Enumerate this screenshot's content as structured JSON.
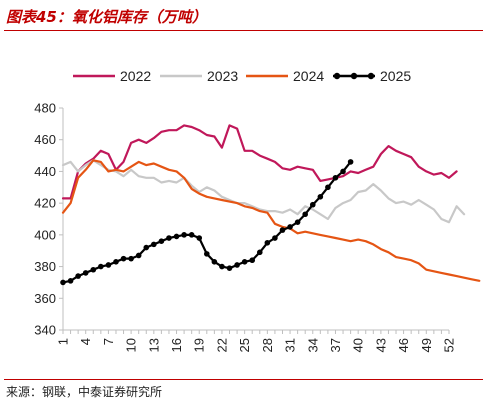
{
  "title": "图表45：氧化铝库存（万吨）",
  "source": "来源：钢联，中泰证券研究所",
  "colors": {
    "accent": "#c00000",
    "axis": "#bfbfbf"
  },
  "chart_data": {
    "type": "line",
    "title": "图表45：氧化铝库存（万吨）",
    "xlabel": "",
    "ylabel": "",
    "xlim": [
      1,
      52
    ],
    "ylim": [
      340,
      480
    ],
    "xticks": [
      1,
      4,
      7,
      10,
      13,
      16,
      19,
      22,
      25,
      28,
      31,
      34,
      37,
      40,
      43,
      46,
      49,
      52
    ],
    "yticks": [
      340,
      360,
      380,
      400,
      420,
      440,
      460,
      480
    ],
    "grid": false,
    "legend": "top",
    "series": [
      {
        "name": "2022",
        "color": "#c0185a",
        "marker": false,
        "values": [
          423,
          423,
          440,
          445,
          448,
          453,
          451,
          441,
          446,
          458,
          460,
          458,
          461,
          465,
          466,
          466,
          469,
          468,
          466,
          463,
          462,
          455,
          469,
          467,
          453,
          453,
          450,
          448,
          446,
          442,
          441,
          443,
          442,
          441,
          434,
          435,
          436,
          437,
          440,
          439,
          441,
          443,
          451,
          456,
          453,
          451,
          449,
          443,
          440,
          438,
          439,
          436,
          440
        ]
      },
      {
        "name": "2023",
        "color": "#c8c8c8",
        "marker": false,
        "values": [
          444,
          446,
          440,
          444,
          447,
          444,
          441,
          440,
          437,
          441,
          437,
          436,
          436,
          433,
          434,
          433,
          436,
          431,
          427,
          430,
          428,
          424,
          422,
          420,
          420,
          418,
          416,
          415,
          415,
          414,
          416,
          413,
          418,
          416,
          413,
          410,
          417,
          420,
          422,
          427,
          428,
          432,
          428,
          423,
          420,
          421,
          419,
          422,
          419,
          416,
          410,
          408,
          418,
          413
        ]
      },
      {
        "name": "2024",
        "color": "#e55514",
        "marker": false,
        "values": [
          414,
          420,
          436,
          441,
          447,
          446,
          440,
          441,
          440,
          443,
          446,
          444,
          445,
          443,
          441,
          440,
          436,
          429,
          426,
          424,
          423,
          422,
          421,
          420,
          418,
          417,
          415,
          414,
          407,
          405,
          404,
          401,
          402,
          401,
          400,
          399,
          398,
          397,
          396,
          397,
          396,
          394,
          391,
          389,
          386,
          385,
          384,
          382,
          378,
          377,
          376,
          375,
          374,
          373,
          372,
          371
        ]
      },
      {
        "name": "2025",
        "color": "#000000",
        "marker": true,
        "values": [
          370,
          371,
          374,
          376,
          378,
          380,
          381,
          383,
          385,
          385,
          387,
          392,
          394,
          396,
          398,
          399,
          400,
          400,
          398,
          388,
          383,
          380,
          379,
          381,
          383,
          384,
          389,
          395,
          398,
          403,
          405,
          408,
          413,
          419,
          424,
          430,
          436,
          440,
          446
        ]
      }
    ]
  }
}
